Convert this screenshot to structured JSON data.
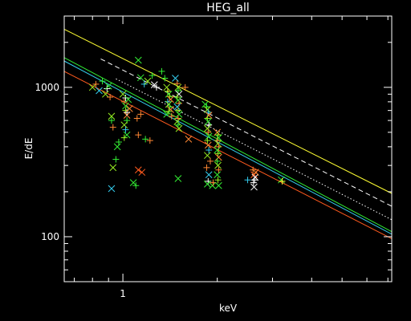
{
  "chart_data": {
    "type": "scatter",
    "title": "HEG_all",
    "xlabel": "keV",
    "ylabel": "E/dE",
    "x_scale": "log",
    "y_scale": "log",
    "xlim": [
      0.65,
      7.2
    ],
    "ylim": [
      50,
      3000
    ],
    "x_ticks": [
      {
        "value": 1,
        "label": "1"
      }
    ],
    "y_ticks": [
      {
        "value": 100,
        "label": "100"
      },
      {
        "value": 1000,
        "label": "1000"
      }
    ],
    "grid": false,
    "colors": {
      "background": "#000000",
      "axes": "#ffffff",
      "text": "#ffffff",
      "yellow": "#ffff33",
      "cyan": "#33ccee",
      "green": "#33ee33",
      "orange": "#ff5a1e",
      "white": "#ffffff",
      "lime": "#99ee22",
      "orange_marker": "#ff8833"
    },
    "lines": [
      {
        "style": "solid",
        "color": "#ffff33",
        "x": [
          0.65,
          7.2
        ],
        "y": [
          2450,
          195
        ]
      },
      {
        "style": "dashed",
        "color": "#ffffff",
        "x": [
          0.85,
          7.2
        ],
        "y": [
          1550,
          160
        ]
      },
      {
        "style": "dotted",
        "color": "#ffffff",
        "x": [
          0.95,
          7.2
        ],
        "y": [
          1140,
          130
        ]
      },
      {
        "style": "solid",
        "color": "#33ee33",
        "x": [
          0.65,
          7.2
        ],
        "y": [
          1580,
          108
        ]
      },
      {
        "style": "solid",
        "color": "#33ccee",
        "x": [
          0.65,
          7.2
        ],
        "y": [
          1500,
          104
        ]
      },
      {
        "style": "solid",
        "color": "#ff5a1e",
        "x": [
          0.65,
          7.2
        ],
        "y": [
          1280,
          97
        ]
      }
    ],
    "points": [
      {
        "x": 0.8,
        "y": 1000,
        "m": "x",
        "c": "#99ee22"
      },
      {
        "x": 0.82,
        "y": 1050,
        "m": "+",
        "c": "#ff8833"
      },
      {
        "x": 0.84,
        "y": 950,
        "m": "x",
        "c": "#33ccee"
      },
      {
        "x": 0.86,
        "y": 1100,
        "m": "+",
        "c": "#33ee33"
      },
      {
        "x": 0.88,
        "y": 900,
        "m": "x",
        "c": "#99ee22"
      },
      {
        "x": 0.89,
        "y": 980,
        "m": "+",
        "c": "#ffffff"
      },
      {
        "x": 0.9,
        "y": 1020,
        "m": "x",
        "c": "#33ee33"
      },
      {
        "x": 0.91,
        "y": 860,
        "m": "+",
        "c": "#ff8833"
      },
      {
        "x": 0.92,
        "y": 640,
        "m": "x",
        "c": "#99ee22"
      },
      {
        "x": 0.92,
        "y": 600,
        "m": "+",
        "c": "#33ee33"
      },
      {
        "x": 0.93,
        "y": 540,
        "m": "+",
        "c": "#ff8833"
      },
      {
        "x": 0.92,
        "y": 210,
        "m": "x",
        "c": "#33ccee"
      },
      {
        "x": 0.93,
        "y": 290,
        "m": "x",
        "c": "#99ee22"
      },
      {
        "x": 0.95,
        "y": 330,
        "m": "+",
        "c": "#33ee33"
      },
      {
        "x": 0.96,
        "y": 400,
        "m": "x",
        "c": "#33ee33"
      },
      {
        "x": 0.97,
        "y": 430,
        "m": "+",
        "c": "#33ee33"
      },
      {
        "x": 1.0,
        "y": 900,
        "m": "x",
        "c": "#99ee22"
      },
      {
        "x": 1.01,
        "y": 800,
        "m": "+",
        "c": "#ff8833"
      },
      {
        "x": 1.02,
        "y": 750,
        "m": "x",
        "c": "#33ee33"
      },
      {
        "x": 1.02,
        "y": 700,
        "m": "+",
        "c": "#99ee22"
      },
      {
        "x": 1.03,
        "y": 650,
        "m": "x",
        "c": "#ff8833"
      },
      {
        "x": 1.03,
        "y": 600,
        "m": "+",
        "c": "#33ee33"
      },
      {
        "x": 1.01,
        "y": 560,
        "m": "x",
        "c": "#99ee22"
      },
      {
        "x": 1.02,
        "y": 520,
        "m": "+",
        "c": "#33ccee"
      },
      {
        "x": 1.03,
        "y": 480,
        "m": "x",
        "c": "#33ee33"
      },
      {
        "x": 1.01,
        "y": 460,
        "m": "+",
        "c": "#99ee22"
      },
      {
        "x": 1.02,
        "y": 850,
        "m": "+",
        "c": "#ffffff"
      },
      {
        "x": 1.04,
        "y": 830,
        "m": "x",
        "c": "#33ee33"
      },
      {
        "x": 1.03,
        "y": 680,
        "m": "+",
        "c": "#ffffff"
      },
      {
        "x": 1.05,
        "y": 720,
        "m": "x",
        "c": "#ff8833"
      },
      {
        "x": 1.08,
        "y": 230,
        "m": "x",
        "c": "#33ee33"
      },
      {
        "x": 1.1,
        "y": 220,
        "m": "+",
        "c": "#33ee33"
      },
      {
        "x": 1.12,
        "y": 280,
        "m": "x",
        "c": "#ff5a1e"
      },
      {
        "x": 1.15,
        "y": 270,
        "m": "x",
        "c": "#ff5a1e"
      },
      {
        "x": 1.11,
        "y": 620,
        "m": "+",
        "c": "#ff8833"
      },
      {
        "x": 1.14,
        "y": 660,
        "m": "+",
        "c": "#ff8833"
      },
      {
        "x": 1.12,
        "y": 480,
        "m": "+",
        "c": "#ff8833"
      },
      {
        "x": 1.12,
        "y": 1520,
        "m": "x",
        "c": "#33ee33"
      },
      {
        "x": 1.14,
        "y": 1160,
        "m": "x",
        "c": "#33ee33"
      },
      {
        "x": 1.17,
        "y": 1050,
        "m": "+",
        "c": "#33ccee"
      },
      {
        "x": 1.2,
        "y": 1100,
        "m": "x",
        "c": "#99ee22"
      },
      {
        "x": 1.24,
        "y": 1200,
        "m": "+",
        "c": "#33ee33"
      },
      {
        "x": 1.26,
        "y": 1040,
        "m": "x",
        "c": "#ffffff"
      },
      {
        "x": 1.28,
        "y": 1000,
        "m": "+",
        "c": "#ffffff"
      },
      {
        "x": 1.18,
        "y": 450,
        "m": "+",
        "c": "#33ee33"
      },
      {
        "x": 1.22,
        "y": 440,
        "m": "+",
        "c": "#ff8833"
      },
      {
        "x": 1.33,
        "y": 1280,
        "m": "+",
        "c": "#33ee33"
      },
      {
        "x": 1.36,
        "y": 1150,
        "m": "+",
        "c": "#33ee33"
      },
      {
        "x": 1.38,
        "y": 1000,
        "m": "x",
        "c": "#99ee22"
      },
      {
        "x": 1.39,
        "y": 940,
        "m": "+",
        "c": "#ffff33"
      },
      {
        "x": 1.4,
        "y": 900,
        "m": "x",
        "c": "#33ee33"
      },
      {
        "x": 1.41,
        "y": 870,
        "m": "+",
        "c": "#99ee22"
      },
      {
        "x": 1.42,
        "y": 830,
        "m": "x",
        "c": "#ff8833"
      },
      {
        "x": 1.39,
        "y": 800,
        "m": "+",
        "c": "#33ccee"
      },
      {
        "x": 1.4,
        "y": 770,
        "m": "x",
        "c": "#99ee22"
      },
      {
        "x": 1.41,
        "y": 740,
        "m": "+",
        "c": "#33ee33"
      },
      {
        "x": 1.42,
        "y": 710,
        "m": "x",
        "c": "#ff8833"
      },
      {
        "x": 1.4,
        "y": 690,
        "m": "+",
        "c": "#99ee22"
      },
      {
        "x": 1.38,
        "y": 660,
        "m": "x",
        "c": "#33ee33"
      },
      {
        "x": 1.43,
        "y": 640,
        "m": "+",
        "c": "#ff8833"
      },
      {
        "x": 1.47,
        "y": 1150,
        "m": "x",
        "c": "#33ccee"
      },
      {
        "x": 1.49,
        "y": 1060,
        "m": "+",
        "c": "#ff8833"
      },
      {
        "x": 1.5,
        "y": 1000,
        "m": "x",
        "c": "#99ee22"
      },
      {
        "x": 1.5,
        "y": 950,
        "m": "+",
        "c": "#33ee33"
      },
      {
        "x": 1.51,
        "y": 900,
        "m": "x",
        "c": "#ffffff"
      },
      {
        "x": 1.49,
        "y": 860,
        "m": "+",
        "c": "#99ee22"
      },
      {
        "x": 1.5,
        "y": 820,
        "m": "x",
        "c": "#33ee33"
      },
      {
        "x": 1.51,
        "y": 780,
        "m": "+",
        "c": "#ff8833"
      },
      {
        "x": 1.49,
        "y": 740,
        "m": "x",
        "c": "#33ccee"
      },
      {
        "x": 1.5,
        "y": 700,
        "m": "+",
        "c": "#99ee22"
      },
      {
        "x": 1.51,
        "y": 660,
        "m": "x",
        "c": "#33ee33"
      },
      {
        "x": 1.5,
        "y": 620,
        "m": "+",
        "c": "#ff8833"
      },
      {
        "x": 1.49,
        "y": 590,
        "m": "x",
        "c": "#99ee22"
      },
      {
        "x": 1.5,
        "y": 560,
        "m": "+",
        "c": "#33ee33"
      },
      {
        "x": 1.51,
        "y": 530,
        "m": "x",
        "c": "#99ee22"
      },
      {
        "x": 1.5,
        "y": 245,
        "m": "x",
        "c": "#33ee33"
      },
      {
        "x": 1.62,
        "y": 450,
        "m": "x",
        "c": "#ff8833"
      },
      {
        "x": 1.58,
        "y": 1000,
        "m": "+",
        "c": "#ff8833"
      },
      {
        "x": 1.83,
        "y": 770,
        "m": "x",
        "c": "#33ee33"
      },
      {
        "x": 1.85,
        "y": 740,
        "m": "+",
        "c": "#33ee33"
      },
      {
        "x": 1.86,
        "y": 710,
        "m": "x",
        "c": "#99ee22"
      },
      {
        "x": 1.87,
        "y": 680,
        "m": "+",
        "c": "#33ccee"
      },
      {
        "x": 1.88,
        "y": 650,
        "m": "x",
        "c": "#ff8833"
      },
      {
        "x": 1.86,
        "y": 620,
        "m": "+",
        "c": "#99ee22"
      },
      {
        "x": 1.87,
        "y": 590,
        "m": "x",
        "c": "#33ee33"
      },
      {
        "x": 1.88,
        "y": 560,
        "m": "+",
        "c": "#ffffff"
      },
      {
        "x": 1.86,
        "y": 530,
        "m": "x",
        "c": "#99ee22"
      },
      {
        "x": 1.87,
        "y": 500,
        "m": "+",
        "c": "#ff8833"
      },
      {
        "x": 1.88,
        "y": 470,
        "m": "x",
        "c": "#33ee33"
      },
      {
        "x": 1.86,
        "y": 440,
        "m": "+",
        "c": "#99ee22"
      },
      {
        "x": 1.87,
        "y": 410,
        "m": "x",
        "c": "#ff8833"
      },
      {
        "x": 1.88,
        "y": 380,
        "m": "+",
        "c": "#33ccee"
      },
      {
        "x": 1.86,
        "y": 350,
        "m": "x",
        "c": "#99ee22"
      },
      {
        "x": 1.9,
        "y": 320,
        "m": "+",
        "c": "#ff8833"
      },
      {
        "x": 1.85,
        "y": 290,
        "m": "+",
        "c": "#ff8833"
      },
      {
        "x": 1.88,
        "y": 260,
        "m": "x",
        "c": "#33ccee"
      },
      {
        "x": 1.87,
        "y": 235,
        "m": "+",
        "c": "#ffffff"
      },
      {
        "x": 1.86,
        "y": 225,
        "m": "x",
        "c": "#33ee33"
      },
      {
        "x": 1.93,
        "y": 220,
        "m": "x",
        "c": "#33ee33"
      },
      {
        "x": 1.94,
        "y": 230,
        "m": "+",
        "c": "#ff8833"
      },
      {
        "x": 2.0,
        "y": 500,
        "m": "x",
        "c": "#ff8833"
      },
      {
        "x": 2.01,
        "y": 480,
        "m": "+",
        "c": "#99ee22"
      },
      {
        "x": 2.02,
        "y": 460,
        "m": "x",
        "c": "#33ee33"
      },
      {
        "x": 2.0,
        "y": 440,
        "m": "+",
        "c": "#ff8833"
      },
      {
        "x": 2.01,
        "y": 420,
        "m": "x",
        "c": "#99ee22"
      },
      {
        "x": 2.02,
        "y": 400,
        "m": "+",
        "c": "#ff8833"
      },
      {
        "x": 2.0,
        "y": 380,
        "m": "x",
        "c": "#33ee33"
      },
      {
        "x": 2.01,
        "y": 360,
        "m": "+",
        "c": "#99ee22"
      },
      {
        "x": 2.02,
        "y": 340,
        "m": "x",
        "c": "#ff8833"
      },
      {
        "x": 2.0,
        "y": 320,
        "m": "+",
        "c": "#33ee33"
      },
      {
        "x": 2.01,
        "y": 300,
        "m": "x",
        "c": "#99ee22"
      },
      {
        "x": 2.02,
        "y": 280,
        "m": "+",
        "c": "#ff8833"
      },
      {
        "x": 2.0,
        "y": 260,
        "m": "x",
        "c": "#33ee33"
      },
      {
        "x": 2.01,
        "y": 240,
        "m": "+",
        "c": "#99ee22"
      },
      {
        "x": 2.02,
        "y": 220,
        "m": "x",
        "c": "#33ee33"
      },
      {
        "x": 2.5,
        "y": 240,
        "m": "+",
        "c": "#33ccee"
      },
      {
        "x": 2.6,
        "y": 280,
        "m": "+",
        "c": "#ff8833"
      },
      {
        "x": 2.62,
        "y": 260,
        "m": "x",
        "c": "#ff5a1e"
      },
      {
        "x": 2.63,
        "y": 240,
        "m": "+",
        "c": "#ffffff"
      },
      {
        "x": 2.61,
        "y": 230,
        "m": "+",
        "c": "#ffffff"
      },
      {
        "x": 2.64,
        "y": 250,
        "m": "x",
        "c": "#ffffff"
      },
      {
        "x": 2.62,
        "y": 215,
        "m": "x",
        "c": "#ffffff"
      },
      {
        "x": 2.65,
        "y": 270,
        "m": "x",
        "c": "#ff8833"
      },
      {
        "x": 3.2,
        "y": 240,
        "m": "x",
        "c": "#33ee33"
      },
      {
        "x": 3.22,
        "y": 235,
        "m": "+",
        "c": "#ffff33"
      }
    ]
  }
}
